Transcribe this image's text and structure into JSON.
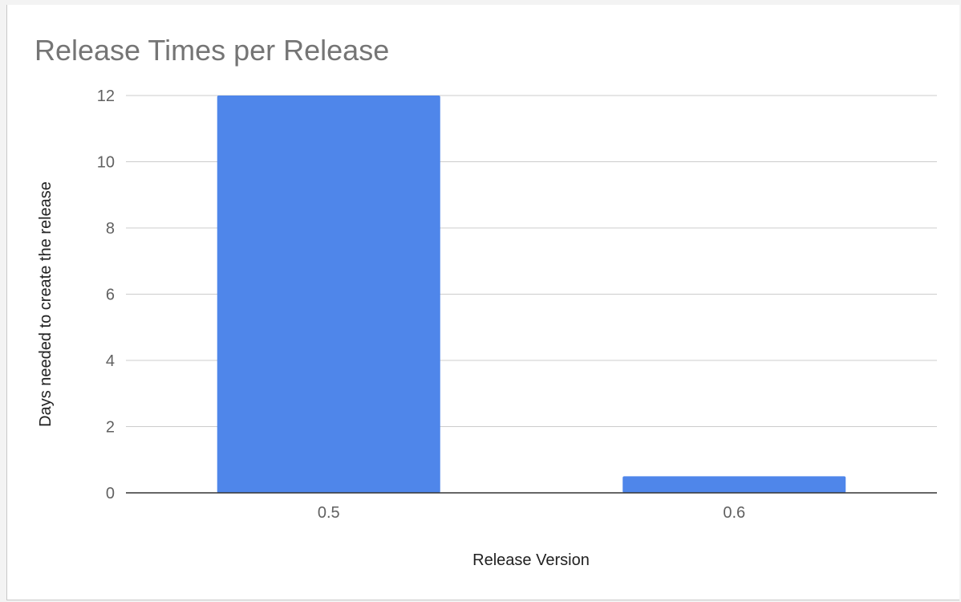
{
  "colors": {
    "bar": "#4f86ea",
    "title": "#757575",
    "grid": "#cccccc",
    "axis": "#333333"
  },
  "chart_data": {
    "type": "bar",
    "title": "Release Times per Release",
    "xlabel": "Release Version",
    "ylabel": "Days needed to create the release",
    "categories": [
      "0.5",
      "0.6"
    ],
    "series": [
      {
        "name": "Days needed to create the release",
        "values": [
          12,
          0.5
        ]
      }
    ],
    "ylim": [
      0,
      12
    ],
    "yticks": [
      0,
      2,
      4,
      6,
      8,
      10,
      12
    ],
    "grid": true,
    "legend": "none"
  }
}
